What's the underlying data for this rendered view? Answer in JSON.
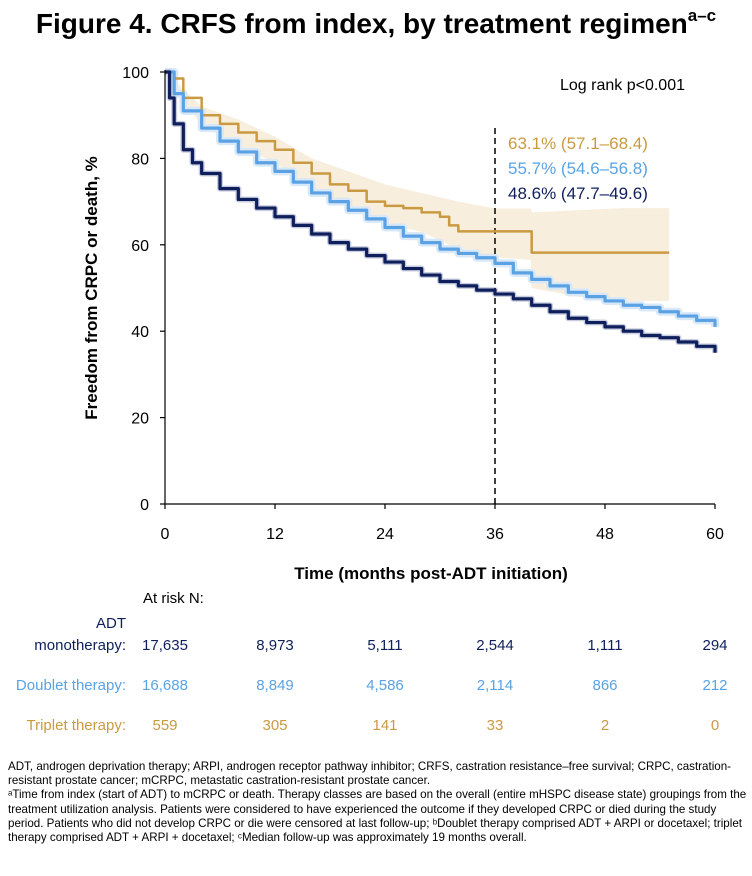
{
  "title": "Figure 4. CRFS from index, by treatment regimen",
  "title_sup": "a–c",
  "chart_data": {
    "type": "line",
    "xlabel": "Time (months post-ADT initiation)",
    "ylabel": "Freedom from CRPC or death, %",
    "xlim": [
      0,
      60
    ],
    "ylim": [
      0,
      100
    ],
    "xticks": [
      0,
      12,
      24,
      36,
      48,
      60
    ],
    "yticks": [
      0,
      20,
      40,
      60,
      80,
      100
    ],
    "grid": false,
    "annotation": "Log rank p<0.001",
    "reference_line_x": 36,
    "colors": {
      "adt": "#0f1f5c",
      "doublet": "#5aa2e3",
      "triplet": "#c99a42",
      "triplet_ci": "#f8eedd",
      "doublet_ci": "#d8e8f8"
    },
    "series": [
      {
        "key": "triplet",
        "label36": "63.1% (57.1–68.4)",
        "color": "#c99a42",
        "x": [
          0,
          1,
          2,
          4,
          6,
          8,
          10,
          12,
          14,
          16,
          18,
          20,
          22,
          24,
          26,
          28,
          30,
          31,
          32,
          34,
          36,
          38,
          39.9,
          40,
          42,
          46,
          50,
          55
        ],
        "y": [
          100,
          98.5,
          94,
          90,
          88,
          86,
          84,
          82,
          79,
          76.5,
          74,
          72.5,
          70,
          69,
          68.5,
          67.5,
          66.5,
          64.5,
          63.1,
          63.1,
          63.1,
          63.1,
          63.1,
          58.2,
          58.2,
          58.2,
          58.2,
          58.2
        ],
        "ci_x": [
          0,
          4,
          8,
          12,
          16,
          20,
          24,
          28,
          32,
          36,
          39.9,
          40,
          45,
          50,
          55
        ],
        "ci_lower": [
          100,
          87.5,
          83,
          79,
          73,
          68.5,
          65,
          63,
          59,
          57.1,
          56.5,
          50,
          48,
          47,
          47
        ],
        "ci_upper": [
          100,
          92,
          89,
          85,
          80,
          77,
          74,
          72,
          70,
          68.4,
          68.4,
          67.5,
          68,
          68.5,
          68.5
        ]
      },
      {
        "key": "doublet",
        "label36": "55.7% (54.6–56.8)",
        "color": "#5aa2e3",
        "x": [
          0,
          1,
          2,
          4,
          6,
          8,
          10,
          12,
          14,
          16,
          18,
          20,
          22,
          24,
          26,
          28,
          30,
          32,
          34,
          36,
          38,
          40,
          42,
          44,
          46,
          48,
          50,
          52,
          54,
          56,
          58,
          60
        ],
        "y": [
          100,
          95,
          91,
          87,
          84,
          81.5,
          79,
          77,
          74.5,
          72,
          70,
          68,
          66,
          64,
          62,
          60.5,
          59,
          58,
          57,
          55.7,
          53.5,
          52,
          50.5,
          49,
          48,
          47,
          46,
          45.5,
          44.5,
          43.5,
          42.5,
          41
        ]
      },
      {
        "key": "adt",
        "label36": "48.6% (47.7–49.6)",
        "color": "#0f1f5c",
        "x": [
          0,
          0.5,
          1,
          2,
          3,
          4,
          6,
          8,
          10,
          12,
          14,
          16,
          18,
          20,
          22,
          24,
          26,
          28,
          30,
          32,
          34,
          36,
          38,
          40,
          42,
          44,
          46,
          48,
          50,
          52,
          54,
          56,
          58,
          60
        ],
        "y": [
          100,
          94,
          88,
          82,
          79,
          76.5,
          73,
          70.5,
          68.5,
          66.5,
          64.5,
          62.5,
          60.5,
          59,
          57.5,
          56,
          54.5,
          53,
          51.5,
          50.5,
          49.5,
          48.6,
          47.5,
          46,
          44.5,
          43,
          42,
          41,
          40,
          39,
          38.5,
          37.5,
          36.5,
          35
        ]
      }
    ]
  },
  "risk_table": {
    "header": "At risk N:",
    "times": [
      0,
      12,
      24,
      36,
      48,
      60
    ],
    "rows": [
      {
        "label_line1": "ADT",
        "label_line2": "monotherapy:",
        "color": "#0f1f5c",
        "values": [
          "17,635",
          "8,973",
          "5,111",
          "2,544",
          "1,111",
          "294"
        ]
      },
      {
        "label_line1": "",
        "label_line2": "Doublet therapy:",
        "color": "#5aa2e3",
        "values": [
          "16,688",
          "8,849",
          "4,586",
          "2,114",
          "866",
          "212"
        ]
      },
      {
        "label_line1": "",
        "label_line2": "Triplet therapy:",
        "color": "#c99a42",
        "values": [
          "559",
          "305",
          "141",
          "33",
          "2",
          "0"
        ]
      }
    ]
  },
  "footnote": [
    "ADT, androgen deprivation therapy; ARPI, androgen receptor pathway inhibitor; CRFS, castration resistance–free survival; CRPC, castration-resistant prostate cancer; mCRPC, metastatic castration-resistant prostate cancer.",
    "ᵃTime from index (start of ADT) to mCRPC or death. Therapy classes are based on the overall (entire mHSPC disease state) groupings from the treatment utilization analysis. Patients were considered to have experienced the outcome if they developed CRPC or died during the study period. Patients who did not develop CRPC or die were censored at last follow-up; ᵇDoublet therapy comprised ADT + ARPI or docetaxel; triplet therapy comprised ADT + ARPI + docetaxel; ᶜMedian follow-up was approximately 19 months overall."
  ]
}
